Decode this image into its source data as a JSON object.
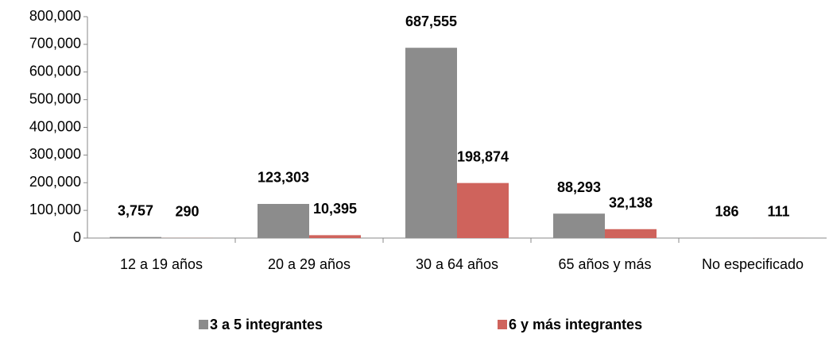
{
  "chart_data": {
    "type": "bar",
    "categories": [
      "12 a 19 años",
      "20 a 29 años",
      "30 a 64 años",
      "65 años y más",
      "No especificado"
    ],
    "series": [
      {
        "name": "3 a 5 integrantes",
        "color": "#8c8c8c",
        "values": [
          3757,
          123303,
          687555,
          88293,
          186
        ],
        "value_labels": [
          "3,757",
          "123,303",
          "687,555",
          "88,293",
          "186"
        ]
      },
      {
        "name": "6 y más integrantes",
        "color": "#cf635c",
        "values": [
          290,
          10395,
          198874,
          32138,
          111
        ],
        "value_labels": [
          "290",
          "10,395",
          "198,874",
          "32,138",
          "111"
        ]
      }
    ],
    "ylim": [
      0,
      800000
    ],
    "yticks": [
      0,
      {
        "value": 100000,
        "label": "100,000"
      },
      {
        "value": 200000,
        "label": "200,000"
      },
      {
        "value": 300000,
        "label": "300,000"
      },
      {
        "value": 400000,
        "label": "400,000"
      },
      {
        "value": 500000,
        "label": "500,000"
      },
      {
        "value": 600000,
        "label": "600,000"
      },
      {
        "value": 700000,
        "label": "700,000"
      },
      {
        "value": 800000,
        "label": "800,000"
      }
    ],
    "grid": false,
    "legend": "bottom"
  }
}
